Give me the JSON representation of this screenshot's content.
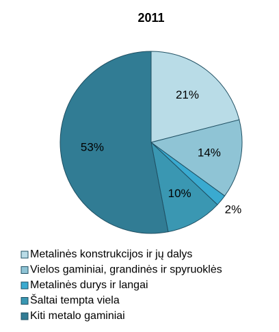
{
  "chart_data": {
    "type": "pie",
    "title": "2011",
    "categories": [
      "Metalinės konstrukcijos ir jų dalys",
      "Vielos gaminiai, grandinės ir spyruoklės",
      "Metalinės durys ir langai",
      "Šaltai tempta viela",
      "Kiti metalo gaminiai"
    ],
    "values": [
      21,
      14,
      2,
      10,
      53
    ],
    "value_labels": [
      "21%",
      "14%",
      "2%",
      "10%",
      "53%"
    ],
    "colors": [
      "#b9dce7",
      "#8fc4d5",
      "#3aaad0",
      "#3a97b2",
      "#317c94"
    ]
  }
}
